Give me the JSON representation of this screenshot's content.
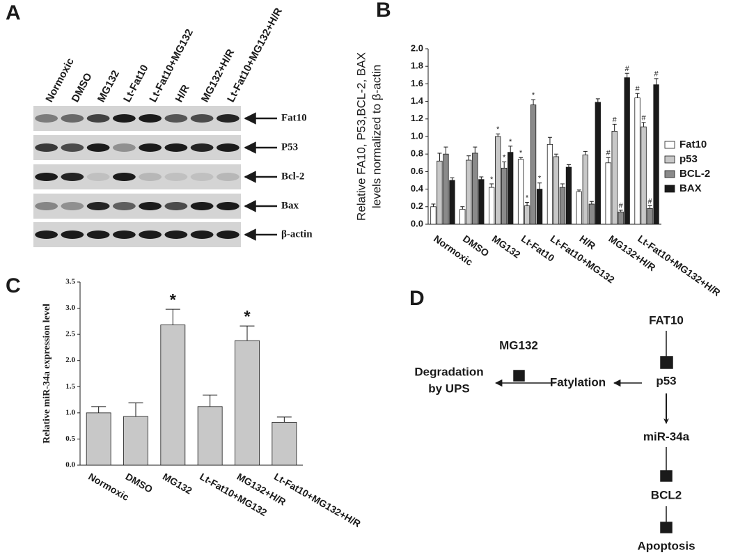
{
  "panel_labels": [
    "A",
    "B",
    "C",
    "D"
  ],
  "blot": {
    "lanes": [
      "Normoxic",
      "DMSO",
      "MG132",
      "Lt-Fat10",
      "Lt-Fat10+MG132",
      "H/R",
      "MG132+H/R",
      "Lt-Fat10+MG132+H/R"
    ],
    "rows": [
      "Fat10",
      "P53",
      "Bcl-2",
      "Bax",
      "β-actin"
    ]
  },
  "chart_data": [
    {
      "type": "bar",
      "y_label": [
        "Relative FA10,  P53,BCL-2, BAX",
        "levels normalized to β-actin"
      ],
      "categories": [
        "Normoxic",
        "DMSO",
        "MG132",
        "Lt-Fat10",
        "Lt-Fat10+MG132",
        "H/R",
        "MG132+H/R",
        "Lt-Fat10+MG132+H/R"
      ],
      "series": [
        {
          "name": "Fat10",
          "color": "#ffffff",
          "values": [
            0.2,
            0.17,
            0.42,
            0.74,
            0.91,
            0.37,
            0.7,
            1.44
          ],
          "errors": [
            0.03,
            0.03,
            0.04,
            0.02,
            0.08,
            0.02,
            0.06,
            0.05
          ],
          "markers": [
            null,
            null,
            "*",
            "*",
            null,
            null,
            "#",
            "#"
          ]
        },
        {
          "name": "p53",
          "color": "#c8c8c8",
          "values": [
            0.72,
            0.73,
            1.0,
            0.21,
            0.77,
            0.79,
            1.06,
            1.11
          ],
          "errors": [
            0.09,
            0.05,
            0.03,
            0.04,
            0.03,
            0.04,
            0.08,
            0.05
          ],
          "markers": [
            null,
            null,
            "*",
            "*",
            null,
            null,
            "#",
            "#"
          ]
        },
        {
          "name": "BCL-2",
          "color": "#8a8a8a",
          "values": [
            0.8,
            0.81,
            0.64,
            1.36,
            0.42,
            0.23,
            0.14,
            0.18
          ],
          "errors": [
            0.08,
            0.07,
            0.07,
            0.06,
            0.04,
            0.03,
            0.02,
            0.03
          ],
          "markers": [
            null,
            null,
            "*",
            "*",
            null,
            null,
            "#",
            "#"
          ]
        },
        {
          "name": "BAX",
          "color": "#1a1a1a",
          "values": [
            0.5,
            0.51,
            0.82,
            0.4,
            0.65,
            1.39,
            1.67,
            1.59
          ],
          "errors": [
            0.03,
            0.03,
            0.07,
            0.07,
            0.03,
            0.04,
            0.05,
            0.07
          ],
          "markers": [
            null,
            null,
            "*",
            "*",
            null,
            null,
            "#",
            "#"
          ]
        }
      ],
      "ylim": [
        0,
        2.0
      ],
      "yticks": [
        {
          "value": 0,
          "label": "0.0"
        },
        0.2,
        0.4,
        0.6,
        0.8,
        {
          "value": 1,
          "label": "1.0"
        },
        1.2,
        1.4,
        1.6,
        1.8,
        {
          "value": 2,
          "label": "2.0"
        }
      ],
      "legend": "right"
    },
    {
      "type": "bar",
      "y_label": [
        "Relative miR-34a expression level"
      ],
      "categories": [
        "Normoxic",
        "DMSO",
        "MG132",
        "Lt-Fat10+MG132",
        "MG132+H/R",
        "Lt-Fat10+MG132+H/R"
      ],
      "values": [
        1.0,
        0.93,
        2.68,
        1.12,
        2.38,
        0.82
      ],
      "errors": [
        0.12,
        0.26,
        0.3,
        0.22,
        0.28,
        0.1
      ],
      "markers": [
        null,
        null,
        "*",
        null,
        "*",
        null
      ],
      "color": "#c8c8c8",
      "ylim": [
        0,
        3.5
      ],
      "yticks": [
        {
          "value": 0,
          "label": "0.0"
        },
        0.5,
        {
          "value": 1,
          "label": "1.0"
        },
        1.5,
        {
          "value": 2,
          "label": "2.0"
        },
        2.5,
        {
          "value": 3,
          "label": "3.0"
        },
        3.5
      ]
    }
  ],
  "diagram": {
    "nodes": [
      {
        "label": [
          "FAT10"
        ]
      },
      {
        "label": [
          "p53"
        ]
      },
      {
        "label": [
          "miR-34a"
        ]
      },
      {
        "label": [
          "BCL2"
        ]
      },
      {
        "label": [
          "Apoptosis"
        ]
      },
      {
        "label": [
          "Fatylation"
        ]
      },
      {
        "label": [
          "MG132"
        ]
      },
      {
        "label": [
          "Degradation",
          "by UPS"
        ]
      }
    ]
  }
}
